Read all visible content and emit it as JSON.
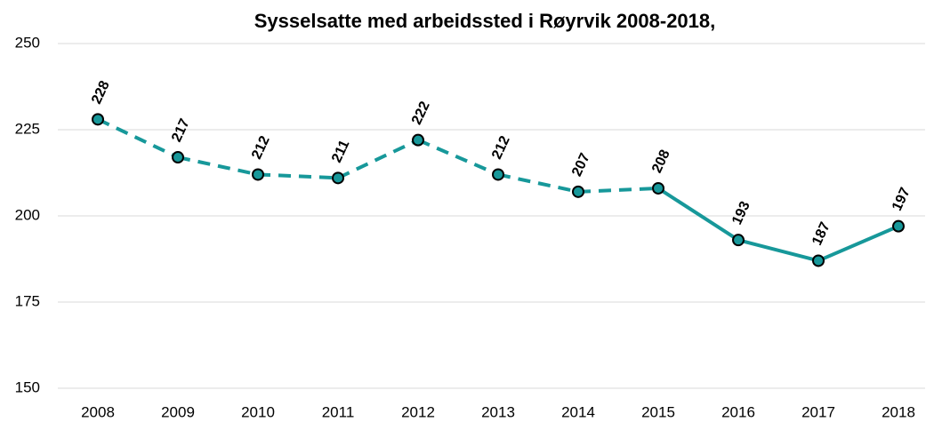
{
  "chart_data": {
    "type": "line",
    "title": "Sysselsatte med arbeidssted i  Røyrvik 2008-2018,",
    "categories": [
      "2008",
      "2009",
      "2010",
      "2011",
      "2012",
      "2013",
      "2014",
      "2015",
      "2016",
      "2017",
      "2018"
    ],
    "values": [
      228,
      217,
      212,
      211,
      222,
      212,
      207,
      208,
      193,
      187,
      197
    ],
    "segment_styles": [
      "dashed",
      "dashed",
      "dashed",
      "dashed",
      "dashed",
      "dashed",
      "dashed",
      "solid",
      "solid",
      "solid"
    ],
    "color": "#17989a",
    "ylim": [
      150,
      250
    ],
    "yticks": [
      150,
      175,
      200,
      225,
      250
    ],
    "grid": true
  }
}
